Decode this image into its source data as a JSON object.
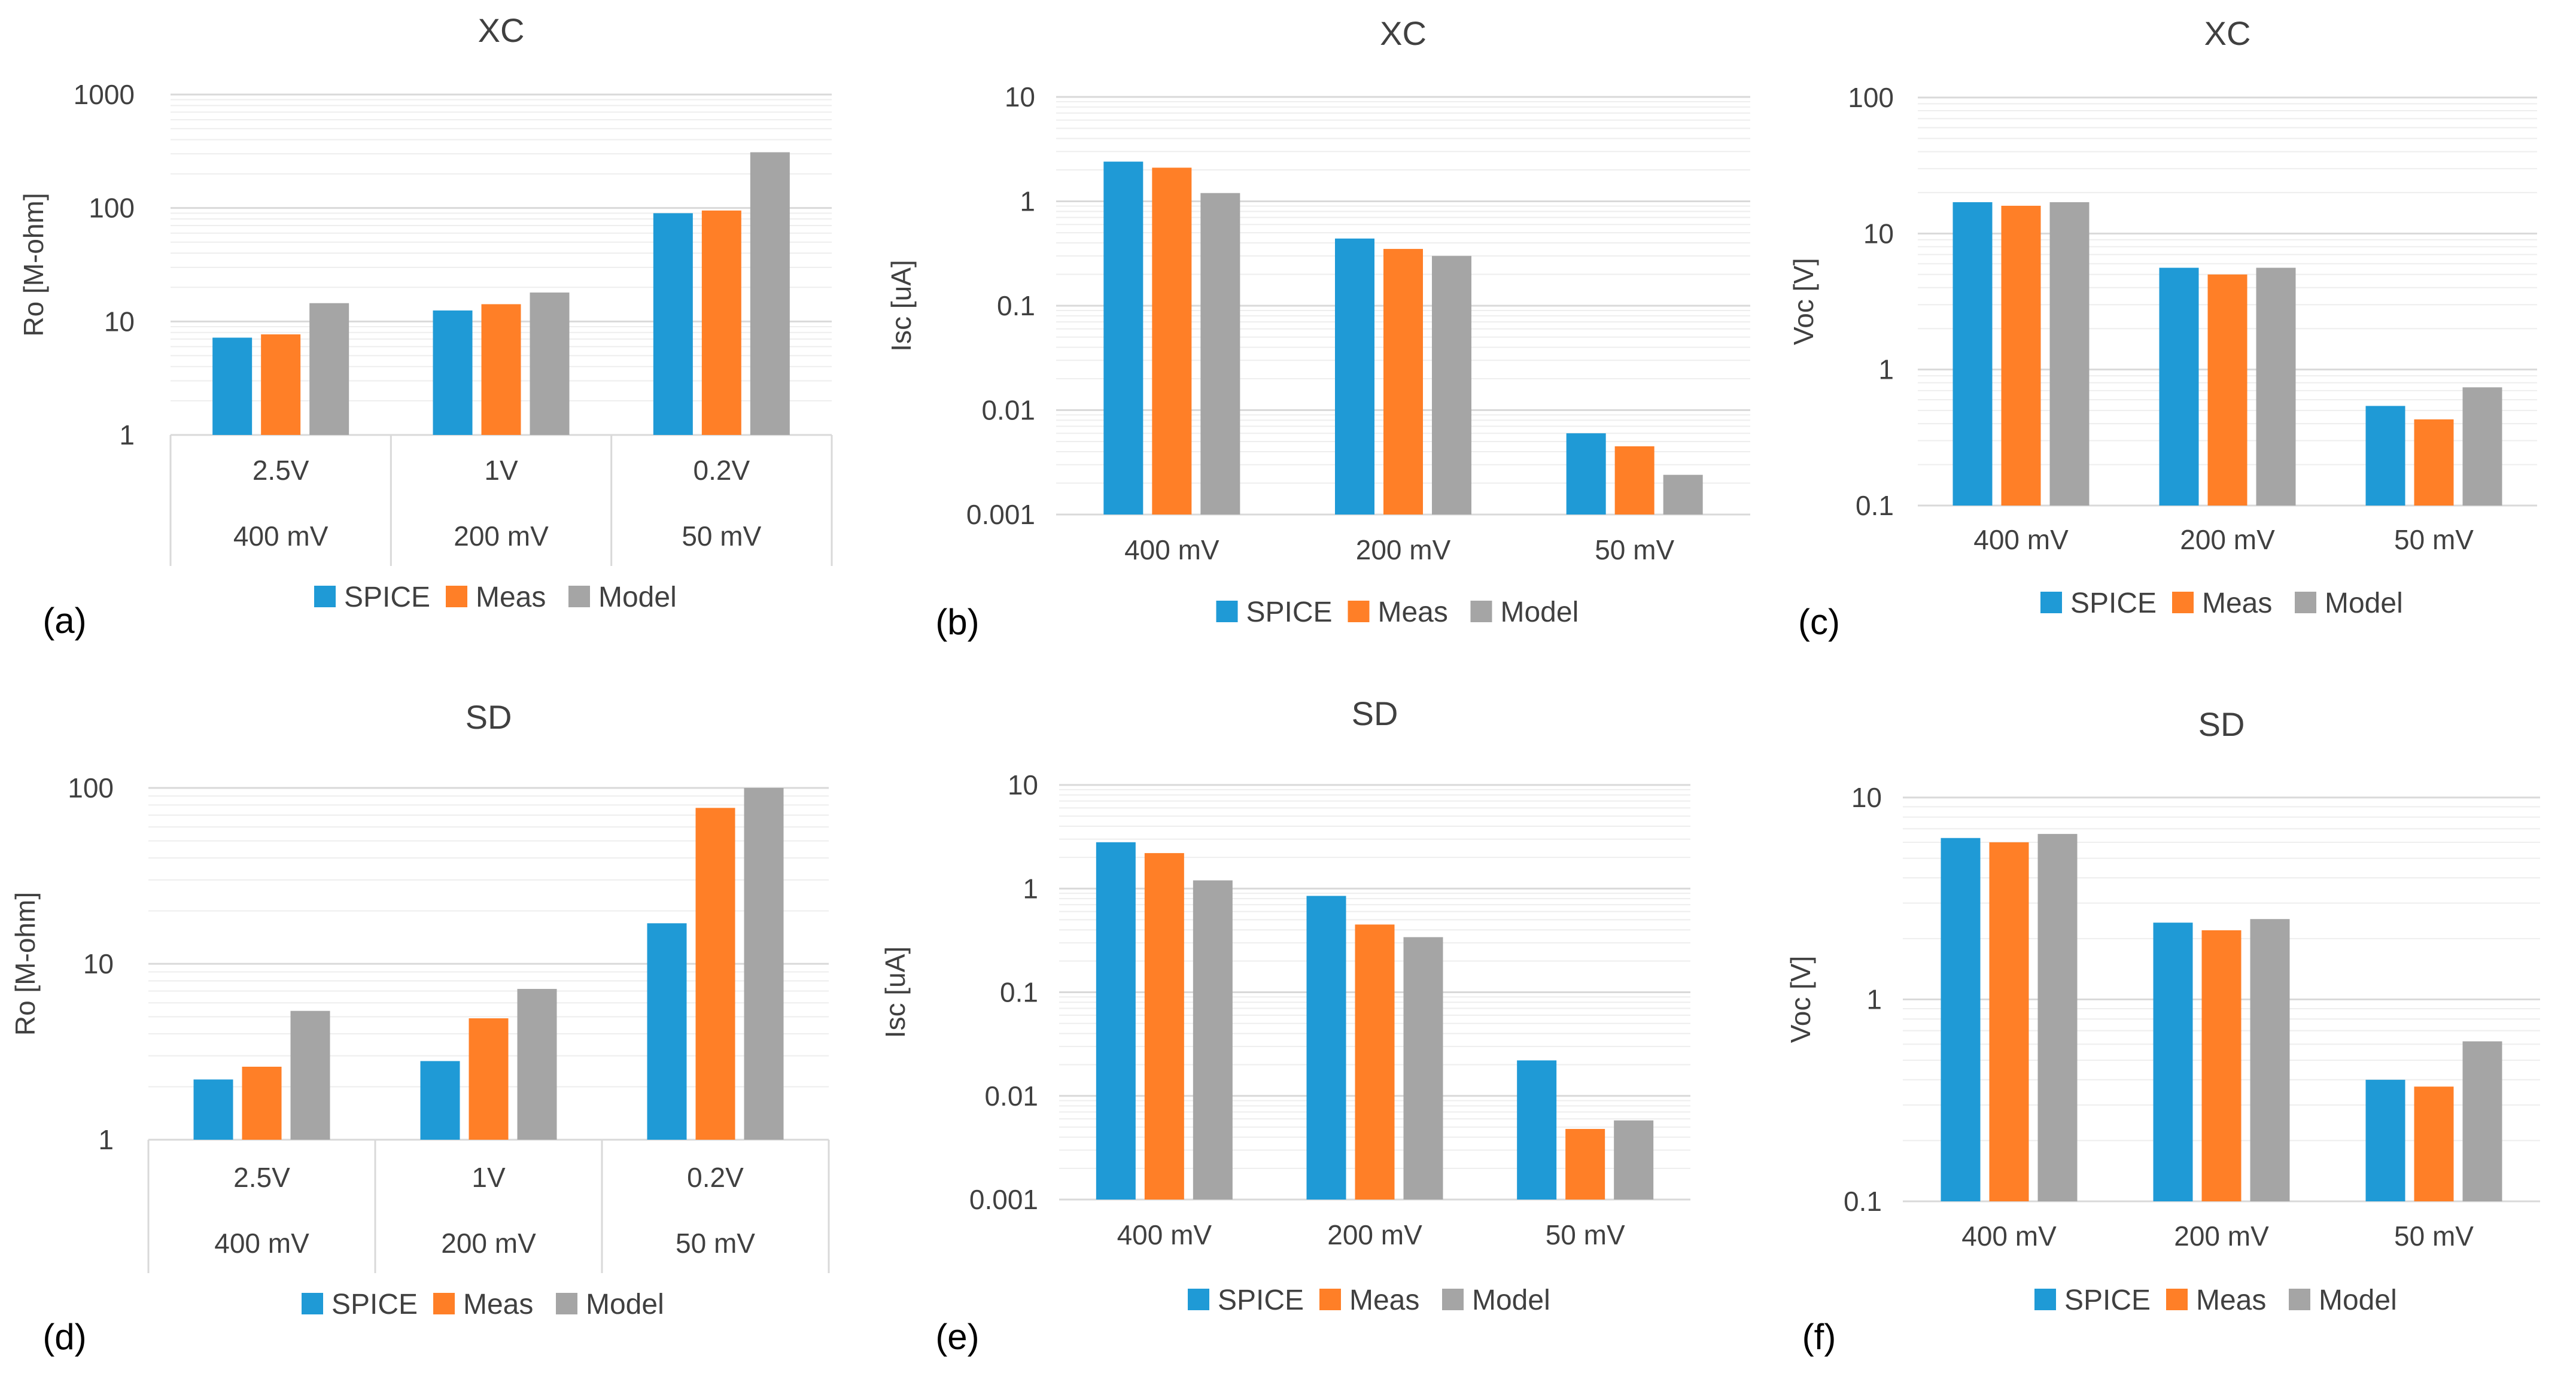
{
  "colors": {
    "SPICE": "#1f9ad6",
    "Meas": "#ff7f27",
    "Model": "#a5a5a5",
    "grid_major": "#d9d9d9",
    "grid_minor": "#eeeeee",
    "text": "#404040"
  },
  "legend_labels": [
    "SPICE",
    "Meas",
    "Model"
  ],
  "chart_data": [
    {
      "panel": "(a)",
      "type": "bar",
      "title": "XC",
      "ylabel": "Ro [M-ohm]",
      "yscale": "log",
      "ylim": [
        1,
        1000
      ],
      "ytick_labels": [
        "1",
        "10",
        "100",
        "1000"
      ],
      "categories": [
        "2.5V",
        "1V",
        "0.2V"
      ],
      "categories2": [
        "400 mV",
        "200 mV",
        "50 mV"
      ],
      "series": [
        {
          "name": "SPICE",
          "values": [
            7.2,
            12.5,
            90
          ]
        },
        {
          "name": "Meas",
          "values": [
            7.7,
            14.2,
            95
          ]
        },
        {
          "name": "Model",
          "values": [
            14.5,
            18,
            310
          ]
        }
      ]
    },
    {
      "panel": "(b)",
      "type": "bar",
      "title": "XC",
      "ylabel": "Isc [uA]",
      "yscale": "log",
      "ylim": [
        0.001,
        10
      ],
      "ytick_labels": [
        "0.001",
        "0.01",
        "0.1",
        "1",
        "10"
      ],
      "categories": [
        "400 mV",
        "200 mV",
        "50 mV"
      ],
      "series": [
        {
          "name": "SPICE",
          "values": [
            2.4,
            0.44,
            0.006
          ]
        },
        {
          "name": "Meas",
          "values": [
            2.1,
            0.35,
            0.0045
          ]
        },
        {
          "name": "Model",
          "values": [
            1.2,
            0.3,
            0.0024
          ]
        }
      ]
    },
    {
      "panel": "(c)",
      "type": "bar",
      "title": "XC",
      "ylabel": "Voc [V]",
      "yscale": "log",
      "ylim": [
        0.1,
        100
      ],
      "ytick_labels": [
        "0.1",
        "1",
        "10",
        "100"
      ],
      "categories": [
        "400 mV",
        "200 mV",
        "50 mV"
      ],
      "series": [
        {
          "name": "SPICE",
          "values": [
            17,
            5.6,
            0.54
          ]
        },
        {
          "name": "Meas",
          "values": [
            16,
            5.0,
            0.43
          ]
        },
        {
          "name": "Model",
          "values": [
            17,
            5.6,
            0.74
          ]
        }
      ]
    },
    {
      "panel": "(d)",
      "type": "bar",
      "title": "SD",
      "ylabel": "Ro [M-ohm]",
      "yscale": "log",
      "ylim": [
        1,
        100
      ],
      "ytick_labels": [
        "1",
        "10",
        "100"
      ],
      "categories": [
        "2.5V",
        "1V",
        "0.2V"
      ],
      "categories2": [
        "400 mV",
        "200 mV",
        "50 mV"
      ],
      "series": [
        {
          "name": "SPICE",
          "values": [
            2.2,
            2.8,
            17
          ]
        },
        {
          "name": "Meas",
          "values": [
            2.6,
            4.9,
            77
          ]
        },
        {
          "name": "Model",
          "values": [
            5.4,
            7.2,
            100
          ]
        }
      ]
    },
    {
      "panel": "(e)",
      "type": "bar",
      "title": "SD",
      "ylabel": "Isc [uA]",
      "yscale": "log",
      "ylim": [
        0.001,
        10
      ],
      "ytick_labels": [
        "0.001",
        "0.01",
        "0.1",
        "1",
        "10"
      ],
      "categories": [
        "400 mV",
        "200 mV",
        "50 mV"
      ],
      "series": [
        {
          "name": "SPICE",
          "values": [
            2.8,
            0.85,
            0.022
          ]
        },
        {
          "name": "Meas",
          "values": [
            2.2,
            0.45,
            0.0048
          ]
        },
        {
          "name": "Model",
          "values": [
            1.2,
            0.34,
            0.0058
          ]
        }
      ]
    },
    {
      "panel": "(f)",
      "type": "bar",
      "title": "SD",
      "ylabel": "Voc [V]",
      "yscale": "log",
      "ylim": [
        0.1,
        10
      ],
      "ytick_labels": [
        "0.1",
        "1",
        "10"
      ],
      "categories": [
        "400 mV",
        "200 mV",
        "50 mV"
      ],
      "series": [
        {
          "name": "SPICE",
          "values": [
            6.3,
            2.4,
            0.4
          ]
        },
        {
          "name": "Meas",
          "values": [
            6.0,
            2.2,
            0.37
          ]
        },
        {
          "name": "Model",
          "values": [
            6.6,
            2.5,
            0.62
          ]
        }
      ]
    }
  ]
}
